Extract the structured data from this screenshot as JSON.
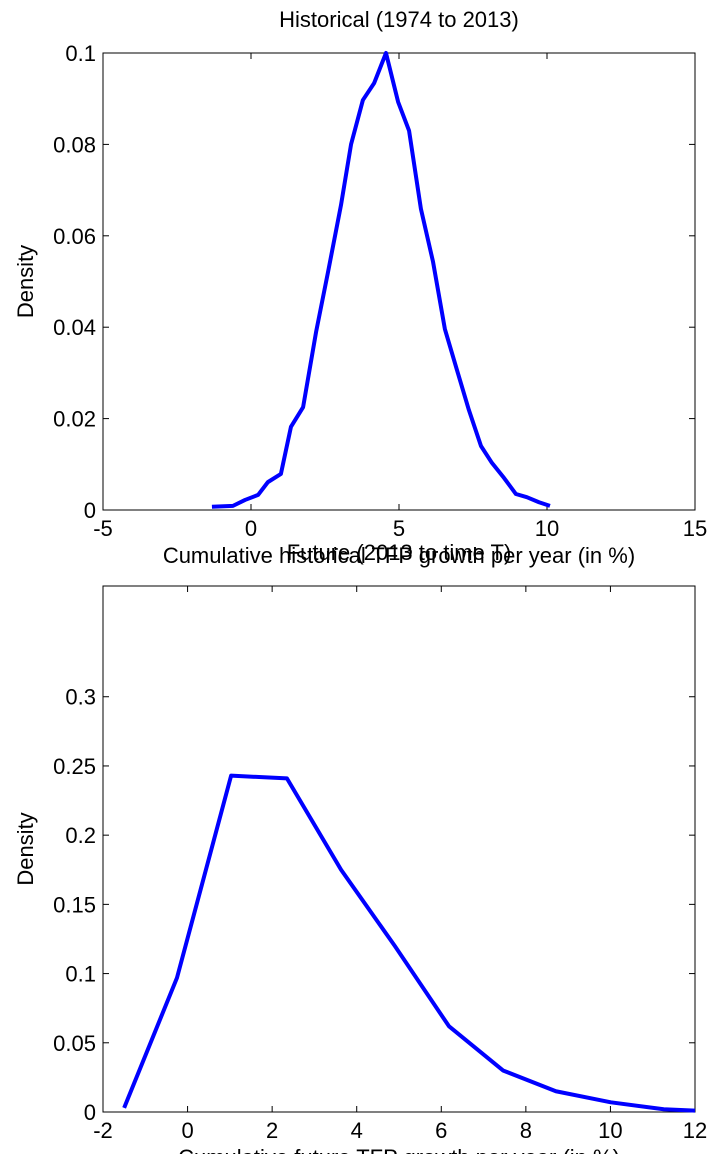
{
  "chart_data": [
    {
      "type": "line",
      "title": "Historical (1974 to 2013)",
      "xlabel": "Cumulative historical TFP growth per year (in %)",
      "ylabel": "Density",
      "x": [
        -1.32,
        -0.61,
        -0.2,
        0.24,
        0.57,
        1.01,
        1.35,
        1.76,
        2.2,
        2.6,
        3.04,
        3.38,
        3.78,
        4.16,
        4.56,
        4.97,
        5.34,
        5.74,
        6.15,
        6.55,
        6.96,
        7.36,
        7.77,
        8.14,
        8.55,
        8.95,
        9.32,
        9.73,
        10.1
      ],
      "series": [
        {
          "color": "#0000ff",
          "values": [
            0.0007,
            0.0009,
            0.0022,
            0.0033,
            0.0061,
            0.0079,
            0.0182,
            0.0225,
            0.039,
            0.052,
            0.0667,
            0.08,
            0.0897,
            0.0934,
            0.1,
            0.0893,
            0.083,
            0.0659,
            0.0543,
            0.0396,
            0.0306,
            0.0219,
            0.014,
            0.0103,
            0.007,
            0.0035,
            0.0028,
            0.0017,
            0.0009
          ]
        }
      ],
      "xlim": [
        -5,
        15
      ],
      "xticks": [
        -5,
        0,
        5,
        10,
        15
      ],
      "ylim": [
        0,
        0.1
      ],
      "yticks": [
        0,
        0.02,
        0.04,
        0.06,
        0.08,
        0.1
      ]
    },
    {
      "type": "line",
      "title": "Future (2013 to time T)",
      "xlabel": "Cumulative future TFP growth per year (in %)",
      "ylabel": "Density",
      "x": [
        -1.5,
        -0.25,
        1.03,
        2.35,
        3.63,
        4.9,
        6.18,
        7.46,
        8.71,
        10.01,
        11.26,
        12
      ],
      "series": [
        {
          "color": "#0000ff",
          "values": [
            0.003,
            0.097,
            0.243,
            0.241,
            0.175,
            0.12,
            0.062,
            0.03,
            0.015,
            0.007,
            0.002,
            0.001
          ]
        }
      ],
      "xlim": [
        -2,
        12
      ],
      "xticks": [
        -2,
        0,
        2,
        4,
        6,
        8,
        10,
        12
      ],
      "ylim": [
        0,
        0.38
      ],
      "yticks": [
        0,
        0.05,
        0.1,
        0.15,
        0.2,
        0.25,
        0.3
      ]
    }
  ]
}
